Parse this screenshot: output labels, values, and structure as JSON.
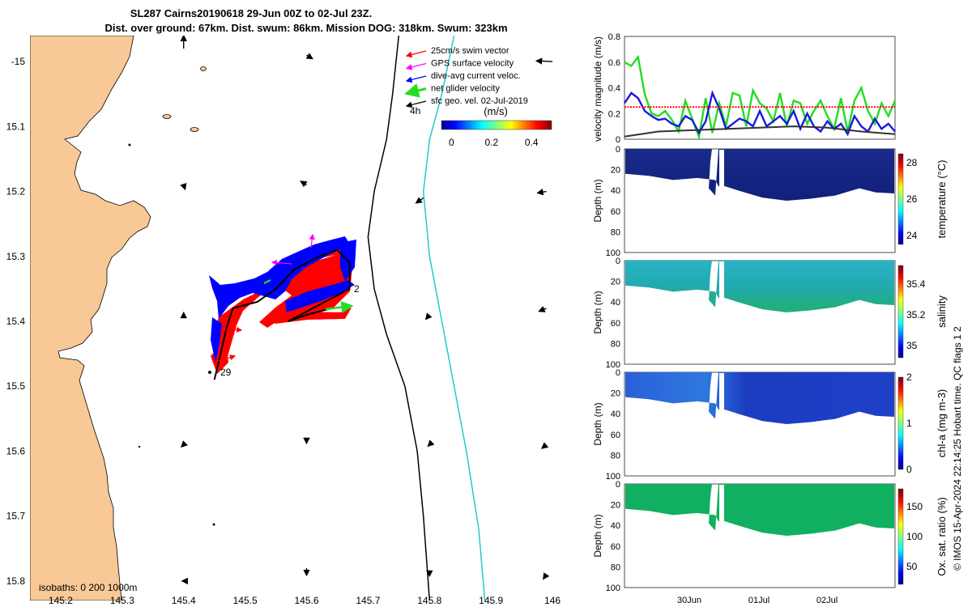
{
  "figure": {
    "title_line1": "SL287 Cairns20190618 29-Jun 00Z to 02-Jul 23Z.",
    "title_line2": "Dist. over ground: 67km. Dist. swum: 86km. Mission DOG: 318km. Swum: 323km",
    "footer": "© IMOS 15-Apr-2024 22:14:25 Hobart time. QC flags 1  2",
    "isobaths_label": "isobaths: 0   200  1000m",
    "start_label": "29",
    "end_label": "2",
    "hour_label": "4h",
    "colors": {
      "land": "#f8c896",
      "track": "#000000",
      "swim": "#ff0000",
      "current": "#0000ff",
      "net": "#22dd22",
      "gps": "#ff00ff",
      "isobath200": "#000000",
      "isobath1000": "#22cccc"
    }
  },
  "chart_data": [
    {
      "type": "scatter",
      "name": "track map",
      "xlim": [
        145.15,
        146.05
      ],
      "ylim": [
        -15.83,
        -14.96
      ],
      "x_ticks": [
        "145.2",
        "145.3",
        "145.4",
        "145.5",
        "145.6",
        "145.7",
        "145.8",
        "145.9",
        "146"
      ],
      "y_ticks": [
        "-15",
        "15.1",
        "15.2",
        "15.3",
        "15.4",
        "15.5",
        "15.6",
        "15.7",
        "15.8"
      ],
      "legend": [
        {
          "label": "25cm/s swim vector",
          "color": "#ff0000"
        },
        {
          "label": "GPS surface velocity",
          "color": "#ff00ff"
        },
        {
          "label": "dive-avg current veloc.",
          "color": "#0000ff"
        },
        {
          "label": "net glider velocity",
          "color": "#22dd22"
        },
        {
          "label": "sfc geo. vel. 02-Jul-2019",
          "color": "#000000"
        }
      ],
      "colorbar": {
        "label": "(m/s)",
        "ticks": [
          "0",
          "0.2",
          "0.4"
        ],
        "range": [
          -0.05,
          0.5
        ]
      },
      "track": [
        [
          145.45,
          -15.49
        ],
        [
          145.46,
          -15.45
        ],
        [
          145.47,
          -15.41
        ],
        [
          145.48,
          -15.38
        ],
        [
          145.52,
          -15.37
        ],
        [
          145.55,
          -15.35
        ],
        [
          145.58,
          -15.32
        ],
        [
          145.62,
          -15.3
        ],
        [
          145.65,
          -15.29
        ],
        [
          145.67,
          -15.31
        ],
        [
          145.67,
          -15.35
        ],
        [
          145.63,
          -15.37
        ],
        [
          145.59,
          -15.39
        ],
        [
          145.57,
          -15.4
        ],
        [
          145.6,
          -15.39
        ],
        [
          145.64,
          -15.38
        ]
      ],
      "geo_vectors": [
        {
          "lon": 145.4,
          "lat": -14.98,
          "u": 0.0,
          "v": 0.18
        },
        {
          "lon": 145.6,
          "lat": -14.99,
          "u": 0.08,
          "v": -0.05
        },
        {
          "lon": 146.0,
          "lat": -15.0,
          "u": -0.22,
          "v": 0.01
        },
        {
          "lon": 145.4,
          "lat": -15.19,
          "u": 0.02,
          "v": -0.06
        },
        {
          "lon": 145.6,
          "lat": -15.19,
          "u": -0.08,
          "v": 0.05
        },
        {
          "lon": 145.79,
          "lat": -15.21,
          "u": -0.1,
          "v": -0.07
        },
        {
          "lon": 145.99,
          "lat": -15.2,
          "u": -0.12,
          "v": -0.02
        },
        {
          "lon": 145.4,
          "lat": -15.39,
          "u": 0.0,
          "v": 0.03
        },
        {
          "lon": 145.8,
          "lat": -15.39,
          "u": -0.05,
          "v": -0.06
        },
        {
          "lon": 145.99,
          "lat": -15.38,
          "u": -0.1,
          "v": -0.04
        },
        {
          "lon": 145.4,
          "lat": -15.59,
          "u": -0.03,
          "v": -0.03
        },
        {
          "lon": 145.6,
          "lat": -15.58,
          "u": 0.0,
          "v": -0.07
        },
        {
          "lon": 145.8,
          "lat": -15.59,
          "u": -0.02,
          "v": -0.02
        },
        {
          "lon": 145.99,
          "lat": -15.59,
          "u": -0.06,
          "v": -0.05
        },
        {
          "lon": 145.4,
          "lat": -15.8,
          "u": -0.02,
          "v": 0.0
        },
        {
          "lon": 145.6,
          "lat": -15.78,
          "u": 0.0,
          "v": -0.1
        },
        {
          "lon": 145.8,
          "lat": -15.79,
          "u": 0.0,
          "v": -0.02
        },
        {
          "lon": 145.99,
          "lat": -15.79,
          "u": -0.04,
          "v": -0.06
        }
      ],
      "isobath_200": [
        [
          145.75,
          -14.96
        ],
        [
          145.74,
          -15.05
        ],
        [
          145.73,
          -15.12
        ],
        [
          145.71,
          -15.2
        ],
        [
          145.7,
          -15.27
        ],
        [
          145.71,
          -15.35
        ],
        [
          145.73,
          -15.42
        ],
        [
          145.76,
          -15.5
        ],
        [
          145.78,
          -15.6
        ],
        [
          145.79,
          -15.7
        ],
        [
          145.8,
          -15.83
        ]
      ],
      "isobath_1000": [
        [
          145.84,
          -14.96
        ],
        [
          145.82,
          -15.05
        ],
        [
          145.8,
          -15.12
        ],
        [
          145.79,
          -15.2
        ],
        [
          145.8,
          -15.3
        ],
        [
          145.82,
          -15.4
        ],
        [
          145.84,
          -15.5
        ],
        [
          145.86,
          -15.6
        ],
        [
          145.88,
          -15.72
        ],
        [
          145.89,
          -15.83
        ]
      ]
    },
    {
      "type": "line",
      "name": "velocity magnitude",
      "ylabel": "velocity magnitude (m/s)",
      "ylim": [
        0,
        0.8
      ],
      "y_ticks": [
        "0",
        "0.2",
        "0.4",
        "0.6",
        "0.8"
      ],
      "xlim": [
        0,
        4
      ],
      "series": [
        {
          "color": "#22dd22",
          "x": [
            0,
            0.1,
            0.2,
            0.3,
            0.4,
            0.5,
            0.6,
            0.7,
            0.8,
            0.9,
            1.0,
            1.1,
            1.2,
            1.3,
            1.4,
            1.5,
            1.6,
            1.7,
            1.8,
            1.9,
            2.0,
            2.1,
            2.2,
            2.3,
            2.4,
            2.5,
            2.6,
            2.7,
            2.8,
            2.9,
            3.0,
            3.1,
            3.2,
            3.3,
            3.4,
            3.5,
            3.6,
            3.7,
            3.8,
            3.9,
            4.0
          ],
          "values": [
            0.6,
            0.57,
            0.64,
            0.35,
            0.2,
            0.18,
            0.22,
            0.15,
            0.06,
            0.3,
            0.16,
            0.02,
            0.32,
            0.05,
            0.28,
            0.1,
            0.36,
            0.34,
            0.1,
            0.38,
            0.28,
            0.24,
            0.14,
            0.36,
            0.1,
            0.3,
            0.28,
            0.12,
            0.22,
            0.3,
            0.18,
            0.08,
            0.32,
            0.06,
            0.3,
            0.4,
            0.22,
            0.12,
            0.28,
            0.18,
            0.3
          ]
        },
        {
          "color": "#1a1adc",
          "x": [
            0,
            0.1,
            0.2,
            0.3,
            0.4,
            0.5,
            0.6,
            0.7,
            0.8,
            0.9,
            1.0,
            1.1,
            1.2,
            1.3,
            1.4,
            1.5,
            1.6,
            1.7,
            1.8,
            1.9,
            2.0,
            2.1,
            2.2,
            2.3,
            2.4,
            2.5,
            2.6,
            2.7,
            2.8,
            2.9,
            3.0,
            3.1,
            3.2,
            3.3,
            3.4,
            3.5,
            3.6,
            3.7,
            3.8,
            3.9,
            4.0
          ],
          "values": [
            0.28,
            0.36,
            0.32,
            0.22,
            0.18,
            0.15,
            0.16,
            0.12,
            0.1,
            0.18,
            0.15,
            0.05,
            0.14,
            0.36,
            0.24,
            0.08,
            0.12,
            0.16,
            0.14,
            0.1,
            0.22,
            0.1,
            0.14,
            0.18,
            0.12,
            0.22,
            0.08,
            0.2,
            0.1,
            0.06,
            0.14,
            0.08,
            0.12,
            0.04,
            0.18,
            0.1,
            0.06,
            0.16,
            0.08,
            0.12,
            0.06
          ]
        },
        {
          "color": "#333333",
          "x": [
            0,
            0.5,
            1.0,
            1.5,
            2.0,
            2.5,
            3.0,
            3.5,
            4.0
          ],
          "values": [
            0.02,
            0.06,
            0.07,
            0.08,
            0.09,
            0.1,
            0.09,
            0.06,
            0.04
          ]
        },
        {
          "color": "#ff0000",
          "x": [
            0,
            4
          ],
          "values": [
            0.25,
            0.25
          ]
        }
      ]
    },
    {
      "type": "heatmap",
      "name": "temperature section",
      "ylabel": "Depth (m)",
      "ylim": [
        0,
        100
      ],
      "y_ticks": [
        "0",
        "20",
        "40",
        "60",
        "80",
        "100"
      ],
      "colorbar": {
        "label": "temperature (°C)",
        "ticks": [
          "24",
          "26",
          "28"
        ],
        "range": [
          23.5,
          28.5
        ]
      }
    },
    {
      "type": "heatmap",
      "name": "salinity section",
      "ylabel": "Depth (m)",
      "ylim": [
        0,
        100
      ],
      "y_ticks": [
        "0",
        "20",
        "40",
        "60",
        "80",
        "100"
      ],
      "colorbar": {
        "label": "salinity",
        "ticks": [
          "35",
          "35.2",
          "35.4"
        ],
        "range": [
          34.92,
          35.52
        ]
      }
    },
    {
      "type": "heatmap",
      "name": "chlorophyll section",
      "ylabel": "Depth (m)",
      "ylim": [
        0,
        100
      ],
      "y_ticks": [
        "0",
        "20",
        "40",
        "60",
        "80",
        "100"
      ],
      "colorbar": {
        "label": "chl-a (mg m-3)",
        "ticks": [
          "0",
          "1",
          "2"
        ],
        "range": [
          0,
          2
        ]
      }
    },
    {
      "type": "heatmap",
      "name": "oxygen section",
      "ylabel": "Depth (m)",
      "ylim": [
        0,
        100
      ],
      "y_ticks": [
        "0",
        "20",
        "40",
        "60",
        "80",
        "100"
      ],
      "x_ticks": [
        "30Jun",
        "01Jul",
        "02Jul"
      ],
      "colorbar": {
        "label": "Ox. sat. ratio (%)",
        "ticks": [
          "50",
          "100",
          "150"
        ],
        "range": [
          20,
          180
        ]
      }
    }
  ]
}
